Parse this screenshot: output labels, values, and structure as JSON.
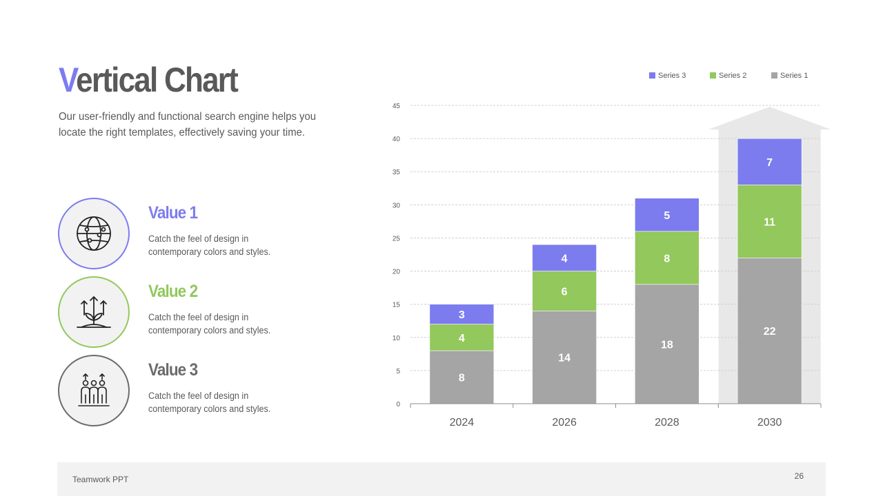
{
  "slide": {
    "title_first": "V",
    "title_rest": "ertical Chart",
    "subtitle": "Our user-friendly and functional search engine helps you locate the right templates, effectively saving your time.",
    "accent_color": "#7c7cef"
  },
  "values": [
    {
      "title": "Value 1",
      "desc": "Catch the feel of design in contemporary colors and styles.",
      "color": "#7c7cef",
      "icon": "globe-icon"
    },
    {
      "title": "Value 2",
      "desc": "Catch the feel of design in contemporary colors and styles.",
      "color": "#92c85c",
      "icon": "sprout-growth-icon"
    },
    {
      "title": "Value 3",
      "desc": "Catch the feel of design in contemporary colors and styles.",
      "color": "#6b6b6b",
      "icon": "team-growth-icon"
    }
  ],
  "footer": {
    "brand": "Teamwork PPT",
    "page": "26"
  },
  "chart_data": {
    "type": "bar",
    "stacked": true,
    "categories": [
      "2024",
      "2026",
      "2028",
      "2030"
    ],
    "series": [
      {
        "name": "Series 1",
        "values": [
          8,
          14,
          18,
          22
        ],
        "color": "#a5a5a5"
      },
      {
        "name": "Series 2",
        "values": [
          4,
          6,
          8,
          11
        ],
        "color": "#92c85c"
      },
      {
        "name": "Series 3",
        "values": [
          3,
          4,
          5,
          7
        ],
        "color": "#7c7cef"
      }
    ],
    "ylim": [
      0,
      45
    ],
    "yticks": [
      0,
      5,
      10,
      15,
      20,
      25,
      30,
      35,
      40,
      45
    ],
    "grid": true,
    "legend": "top-right",
    "legend_order": [
      "Series 3",
      "Series 2",
      "Series 1"
    ],
    "highlight": {
      "category": "2030",
      "shape": "arrow",
      "color": "#e8e8e8"
    }
  }
}
